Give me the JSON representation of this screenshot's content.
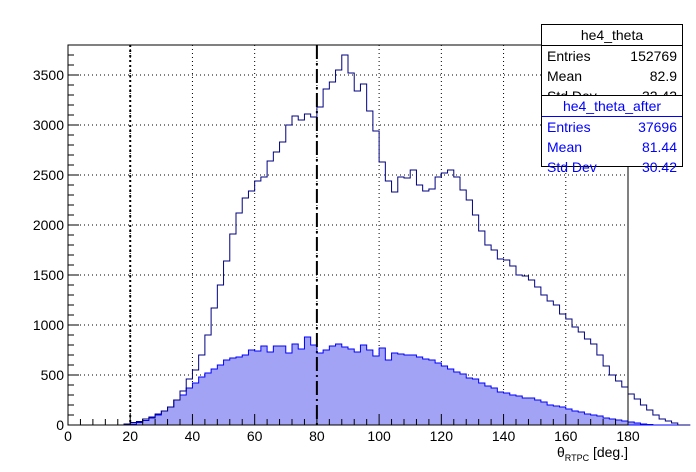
{
  "chart_data": {
    "type": "histogram",
    "title": "",
    "xlabel": "θ",
    "xlabel_subscript": "RTPC",
    "xlabel_suffix": " [deg.]",
    "ylabel": "",
    "xlim": [
      0,
      180
    ],
    "ylim": [
      0,
      3800
    ],
    "bin_width": 2,
    "grid": true,
    "x_ticks": [
      0,
      20,
      40,
      60,
      80,
      100,
      120,
      140,
      160,
      180
    ],
    "y_ticks": [
      0,
      500,
      1000,
      1500,
      2000,
      2500,
      3000,
      3500
    ],
    "vertical_lines": [
      {
        "x": 20,
        "style": "dotted"
      },
      {
        "x": 80,
        "style": "dashed"
      }
    ],
    "series": [
      {
        "name": "he4_theta",
        "color": "#000080",
        "fill": "none",
        "values": [
          0,
          0,
          0,
          0,
          0,
          0,
          0,
          0,
          0,
          10,
          25,
          35,
          60,
          80,
          110,
          140,
          180,
          250,
          340,
          460,
          550,
          700,
          900,
          1170,
          1400,
          1640,
          1910,
          2120,
          2270,
          2340,
          2440,
          2480,
          2640,
          2730,
          2830,
          3000,
          3090,
          3050,
          3110,
          3080,
          3180,
          3360,
          3430,
          3550,
          3700,
          3520,
          3340,
          3410,
          3140,
          2940,
          2630,
          2440,
          2330,
          2480,
          2470,
          2550,
          2400,
          2340,
          2360,
          2480,
          2520,
          2550,
          2480,
          2350,
          2250,
          2100,
          1940,
          1800,
          1750,
          1660,
          1650,
          1590,
          1500,
          1490,
          1450,
          1380,
          1300,
          1240,
          1200,
          1110,
          1060,
          980,
          930,
          860,
          810,
          700,
          590,
          500,
          440,
          380,
          310,
          260,
          200,
          150,
          100,
          60,
          40,
          20,
          0,
          0
        ]
      },
      {
        "name": "he4_theta_after",
        "color": "#0000ff",
        "fill": "#a3a3f5",
        "values": [
          0,
          0,
          0,
          0,
          0,
          0,
          0,
          0,
          0,
          0,
          10,
          25,
          45,
          70,
          100,
          140,
          180,
          250,
          300,
          370,
          420,
          480,
          520,
          560,
          600,
          650,
          670,
          680,
          700,
          750,
          740,
          790,
          730,
          790,
          790,
          720,
          810,
          760,
          880,
          800,
          720,
          750,
          790,
          810,
          780,
          760,
          730,
          800,
          750,
          690,
          770,
          650,
          720,
          710,
          700,
          700,
          680,
          660,
          650,
          620,
          590,
          560,
          530,
          510,
          470,
          460,
          420,
          390,
          370,
          330,
          320,
          300,
          290,
          270,
          270,
          250,
          230,
          200,
          190,
          180,
          160,
          140,
          130,
          110,
          100,
          90,
          70,
          60,
          50,
          40,
          30,
          20,
          10,
          5,
          0,
          0,
          0,
          0,
          0,
          0
        ]
      }
    ]
  },
  "stats_boxes": [
    {
      "title": "he4_theta",
      "rows": [
        {
          "label": "Entries",
          "value": "152769"
        },
        {
          "label": "Mean",
          "value": "82.9"
        },
        {
          "label": "Std Dev",
          "value": "32.42"
        }
      ]
    },
    {
      "title": "he4_theta_after",
      "rows": [
        {
          "label": "Entries",
          "value": "37696"
        },
        {
          "label": "Mean",
          "value": "81.44"
        },
        {
          "label": "Std Dev",
          "value": "30.42"
        }
      ]
    }
  ]
}
